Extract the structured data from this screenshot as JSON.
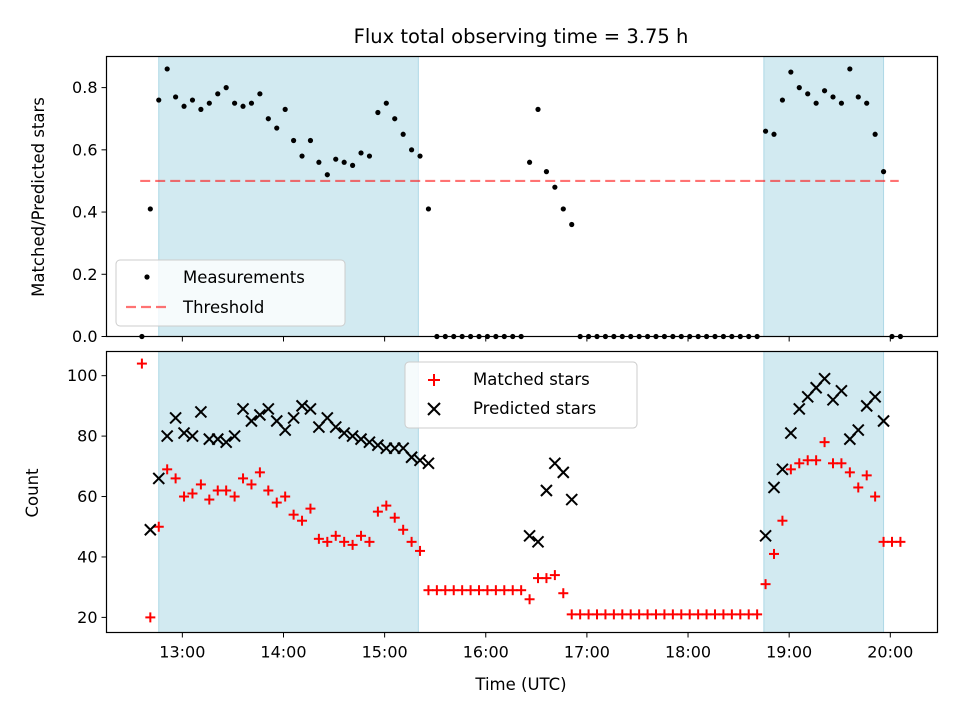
{
  "chart_data": [
    {
      "type": "scatter",
      "title": "Flux total observing time = 3.75 h",
      "xlabel": "",
      "ylabel": "Matched/Predicted stars",
      "ylim": [
        0,
        0.9
      ],
      "yticks": [
        0.0,
        0.2,
        0.4,
        0.6,
        0.8
      ],
      "ytick_labels": [
        "0.0",
        "0.2",
        "0.4",
        "0.6",
        "0.8"
      ],
      "legend": {
        "position": "lower-left",
        "entries": [
          "Measurements",
          "Threshold"
        ]
      },
      "threshold": 0.5,
      "threshold_range": [
        "12:35",
        "20:05"
      ],
      "series": [
        {
          "name": "Measurements",
          "marker": "dot",
          "color": "#000000",
          "points": [
            [
              "12:36",
              0.0
            ],
            [
              "12:41",
              0.41
            ],
            [
              "12:46",
              0.76
            ],
            [
              "12:51",
              0.86
            ],
            [
              "12:56",
              0.77
            ],
            [
              "13:01",
              0.74
            ],
            [
              "13:06",
              0.76
            ],
            [
              "13:11",
              0.73
            ],
            [
              "13:16",
              0.75
            ],
            [
              "13:21",
              0.78
            ],
            [
              "13:26",
              0.8
            ],
            [
              "13:31",
              0.75
            ],
            [
              "13:36",
              0.74
            ],
            [
              "13:41",
              0.75
            ],
            [
              "13:46",
              0.78
            ],
            [
              "13:51",
              0.7
            ],
            [
              "13:56",
              0.67
            ],
            [
              "14:01",
              0.73
            ],
            [
              "14:06",
              0.63
            ],
            [
              "14:11",
              0.58
            ],
            [
              "14:16",
              0.63
            ],
            [
              "14:21",
              0.56
            ],
            [
              "14:26",
              0.52
            ],
            [
              "14:31",
              0.57
            ],
            [
              "14:36",
              0.56
            ],
            [
              "14:41",
              0.55
            ],
            [
              "14:46",
              0.59
            ],
            [
              "14:51",
              0.58
            ],
            [
              "14:56",
              0.72
            ],
            [
              "15:01",
              0.75
            ],
            [
              "15:06",
              0.7
            ],
            [
              "15:11",
              0.65
            ],
            [
              "15:16",
              0.6
            ],
            [
              "15:21",
              0.58
            ],
            [
              "15:26",
              0.41
            ],
            [
              "15:31",
              0.0
            ],
            [
              "15:36",
              0.0
            ],
            [
              "15:41",
              0.0
            ],
            [
              "15:46",
              0.0
            ],
            [
              "15:51",
              0.0
            ],
            [
              "15:56",
              0.0
            ],
            [
              "16:01",
              0.0
            ],
            [
              "16:06",
              0.0
            ],
            [
              "16:11",
              0.0
            ],
            [
              "16:16",
              0.0
            ],
            [
              "16:21",
              0.0
            ],
            [
              "16:26",
              0.56
            ],
            [
              "16:31",
              0.73
            ],
            [
              "16:36",
              0.53
            ],
            [
              "16:41",
              0.48
            ],
            [
              "16:46",
              0.41
            ],
            [
              "16:51",
              0.36
            ],
            [
              "16:56",
              0.0
            ],
            [
              "17:01",
              0.0
            ],
            [
              "17:06",
              0.0
            ],
            [
              "17:11",
              0.0
            ],
            [
              "17:16",
              0.0
            ],
            [
              "17:21",
              0.0
            ],
            [
              "17:26",
              0.0
            ],
            [
              "17:31",
              0.0
            ],
            [
              "17:36",
              0.0
            ],
            [
              "17:41",
              0.0
            ],
            [
              "17:46",
              0.0
            ],
            [
              "17:51",
              0.0
            ],
            [
              "17:56",
              0.0
            ],
            [
              "18:01",
              0.0
            ],
            [
              "18:06",
              0.0
            ],
            [
              "18:11",
              0.0
            ],
            [
              "18:16",
              0.0
            ],
            [
              "18:21",
              0.0
            ],
            [
              "18:26",
              0.0
            ],
            [
              "18:31",
              0.0
            ],
            [
              "18:36",
              0.0
            ],
            [
              "18:41",
              0.0
            ],
            [
              "18:46",
              0.66
            ],
            [
              "18:51",
              0.65
            ],
            [
              "18:56",
              0.76
            ],
            [
              "19:01",
              0.85
            ],
            [
              "19:06",
              0.8
            ],
            [
              "19:11",
              0.78
            ],
            [
              "19:16",
              0.75
            ],
            [
              "19:21",
              0.79
            ],
            [
              "19:26",
              0.77
            ],
            [
              "19:31",
              0.75
            ],
            [
              "19:36",
              0.86
            ],
            [
              "19:41",
              0.77
            ],
            [
              "19:46",
              0.75
            ],
            [
              "19:51",
              0.65
            ],
            [
              "19:56",
              0.53
            ],
            [
              "20:01",
              0.0
            ],
            [
              "20:06",
              0.0
            ]
          ]
        }
      ]
    },
    {
      "type": "scatter",
      "title": "",
      "xlabel": "Time (UTC)",
      "ylabel": "Count",
      "ylim": [
        15,
        108
      ],
      "yticks": [
        20,
        40,
        60,
        80,
        100
      ],
      "ytick_labels": [
        "20",
        "40",
        "60",
        "80",
        "100"
      ],
      "xlim": [
        "12:15",
        "20:28"
      ],
      "xticks": [
        "13:00",
        "14:00",
        "15:00",
        "16:00",
        "17:00",
        "18:00",
        "19:00",
        "20:00"
      ],
      "legend": {
        "position": "top-center",
        "entries": [
          "Matched stars",
          "Predicted stars"
        ]
      },
      "series": [
        {
          "name": "Matched stars",
          "marker": "plus",
          "color": "#ff0000",
          "points": [
            [
              "12:36",
              104
            ],
            [
              "12:41",
              20
            ],
            [
              "12:46",
              50
            ],
            [
              "12:51",
              69
            ],
            [
              "12:56",
              66
            ],
            [
              "13:01",
              60
            ],
            [
              "13:06",
              61
            ],
            [
              "13:11",
              64
            ],
            [
              "13:16",
              59
            ],
            [
              "13:21",
              62
            ],
            [
              "13:26",
              62
            ],
            [
              "13:31",
              60
            ],
            [
              "13:36",
              66
            ],
            [
              "13:41",
              64
            ],
            [
              "13:46",
              68
            ],
            [
              "13:51",
              62
            ],
            [
              "13:56",
              58
            ],
            [
              "14:01",
              60
            ],
            [
              "14:06",
              54
            ],
            [
              "14:11",
              52
            ],
            [
              "14:16",
              56
            ],
            [
              "14:21",
              46
            ],
            [
              "14:26",
              45
            ],
            [
              "14:31",
              47
            ],
            [
              "14:36",
              45
            ],
            [
              "14:41",
              44
            ],
            [
              "14:46",
              47
            ],
            [
              "14:51",
              45
            ],
            [
              "14:56",
              55
            ],
            [
              "15:01",
              57
            ],
            [
              "15:06",
              53
            ],
            [
              "15:11",
              49
            ],
            [
              "15:16",
              45
            ],
            [
              "15:21",
              42
            ],
            [
              "15:26",
              29
            ],
            [
              "15:31",
              29
            ],
            [
              "15:36",
              29
            ],
            [
              "15:41",
              29
            ],
            [
              "15:46",
              29
            ],
            [
              "15:51",
              29
            ],
            [
              "15:56",
              29
            ],
            [
              "16:01",
              29
            ],
            [
              "16:06",
              29
            ],
            [
              "16:11",
              29
            ],
            [
              "16:16",
              29
            ],
            [
              "16:21",
              29
            ],
            [
              "16:26",
              26
            ],
            [
              "16:31",
              33
            ],
            [
              "16:36",
              33
            ],
            [
              "16:41",
              34
            ],
            [
              "16:46",
              28
            ],
            [
              "16:51",
              21
            ],
            [
              "16:56",
              21
            ],
            [
              "17:01",
              21
            ],
            [
              "17:06",
              21
            ],
            [
              "17:11",
              21
            ],
            [
              "17:16",
              21
            ],
            [
              "17:21",
              21
            ],
            [
              "17:26",
              21
            ],
            [
              "17:31",
              21
            ],
            [
              "17:36",
              21
            ],
            [
              "17:41",
              21
            ],
            [
              "17:46",
              21
            ],
            [
              "17:51",
              21
            ],
            [
              "17:56",
              21
            ],
            [
              "18:01",
              21
            ],
            [
              "18:06",
              21
            ],
            [
              "18:11",
              21
            ],
            [
              "18:16",
              21
            ],
            [
              "18:21",
              21
            ],
            [
              "18:26",
              21
            ],
            [
              "18:31",
              21
            ],
            [
              "18:36",
              21
            ],
            [
              "18:41",
              21
            ],
            [
              "18:46",
              31
            ],
            [
              "18:51",
              41
            ],
            [
              "18:56",
              52
            ],
            [
              "19:01",
              69
            ],
            [
              "19:06",
              71
            ],
            [
              "19:11",
              72
            ],
            [
              "19:16",
              72
            ],
            [
              "19:21",
              78
            ],
            [
              "19:26",
              71
            ],
            [
              "19:31",
              71
            ],
            [
              "19:36",
              68
            ],
            [
              "19:41",
              63
            ],
            [
              "19:46",
              67
            ],
            [
              "19:51",
              60
            ],
            [
              "19:56",
              45
            ],
            [
              "20:01",
              45
            ],
            [
              "20:06",
              45
            ]
          ]
        },
        {
          "name": "Predicted stars",
          "marker": "x",
          "color": "#000000",
          "points": [
            [
              "12:41",
              49
            ],
            [
              "12:46",
              66
            ],
            [
              "12:51",
              80
            ],
            [
              "12:56",
              86
            ],
            [
              "13:01",
              81
            ],
            [
              "13:06",
              80
            ],
            [
              "13:11",
              88
            ],
            [
              "13:16",
              79
            ],
            [
              "13:21",
              79
            ],
            [
              "13:26",
              78
            ],
            [
              "13:31",
              80
            ],
            [
              "13:36",
              89
            ],
            [
              "13:41",
              85
            ],
            [
              "13:46",
              87
            ],
            [
              "13:51",
              89
            ],
            [
              "13:56",
              85
            ],
            [
              "14:01",
              82
            ],
            [
              "14:06",
              86
            ],
            [
              "14:11",
              90
            ],
            [
              "14:16",
              89
            ],
            [
              "14:21",
              83
            ],
            [
              "14:26",
              86
            ],
            [
              "14:31",
              83
            ],
            [
              "14:36",
              81
            ],
            [
              "14:41",
              80
            ],
            [
              "14:46",
              79
            ],
            [
              "14:51",
              78
            ],
            [
              "14:56",
              77
            ],
            [
              "15:01",
              76
            ],
            [
              "15:06",
              76
            ],
            [
              "15:11",
              76
            ],
            [
              "15:16",
              73
            ],
            [
              "15:21",
              72
            ],
            [
              "15:26",
              71
            ],
            [
              "16:26",
              47
            ],
            [
              "16:31",
              45
            ],
            [
              "16:36",
              62
            ],
            [
              "16:41",
              71
            ],
            [
              "16:46",
              68
            ],
            [
              "16:51",
              59
            ],
            [
              "18:46",
              47
            ],
            [
              "18:51",
              63
            ],
            [
              "18:56",
              69
            ],
            [
              "19:01",
              81
            ],
            [
              "19:06",
              89
            ],
            [
              "19:11",
              93
            ],
            [
              "19:16",
              96
            ],
            [
              "19:21",
              99
            ],
            [
              "19:26",
              92
            ],
            [
              "19:31",
              95
            ],
            [
              "19:36",
              79
            ],
            [
              "19:41",
              82
            ],
            [
              "19:46",
              90
            ],
            [
              "19:51",
              93
            ],
            [
              "19:56",
              85
            ]
          ]
        }
      ]
    }
  ],
  "observing_windows": [
    [
      "12:46",
      "15:20"
    ],
    [
      "18:45",
      "19:56"
    ]
  ],
  "colors": {
    "window_fill": "#add8e6",
    "threshold": "#ff0000",
    "matched": "#ff0000",
    "predicted": "#000000",
    "measurement": "#000000"
  }
}
